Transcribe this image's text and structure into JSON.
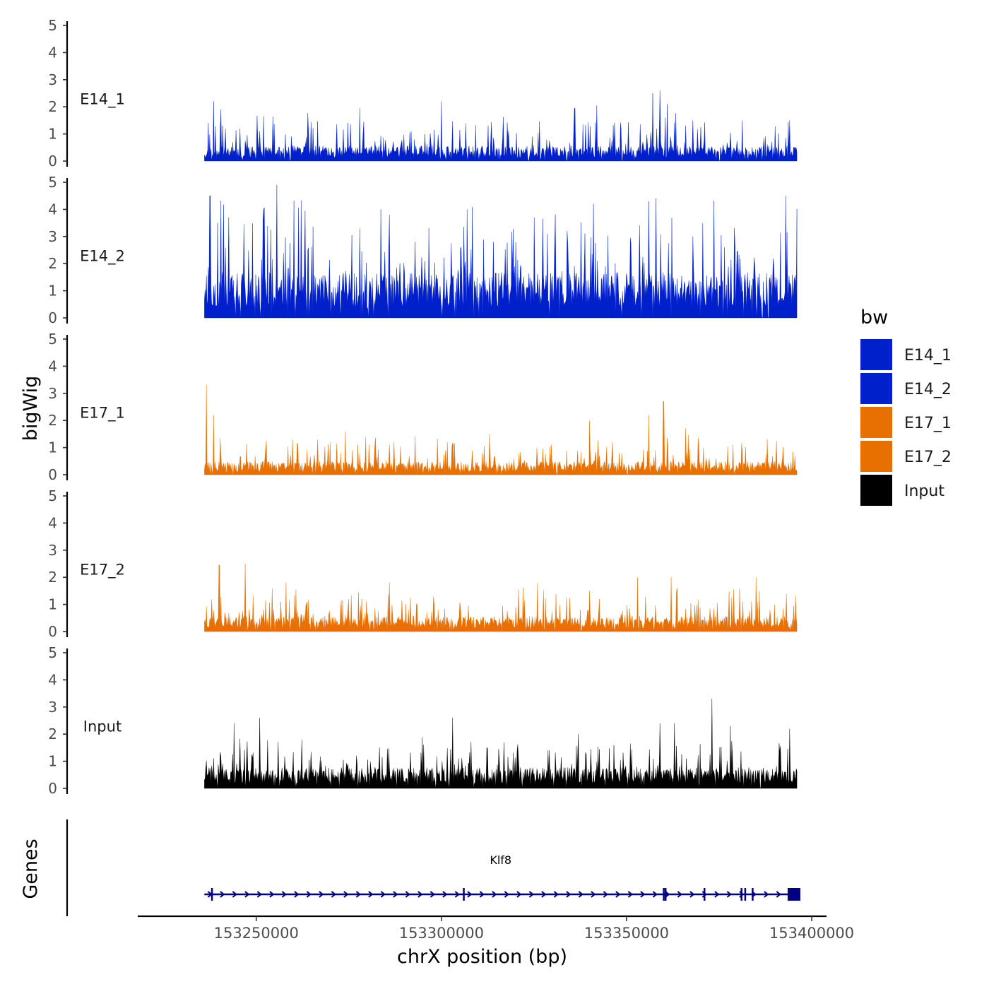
{
  "chart_data": {
    "type": "area",
    "title": "",
    "xlabel": "chrX position (bp)",
    "ylabel": "bigWig",
    "genes_label": "Genes",
    "xlim": [
      153218000,
      153404000
    ],
    "data_range": [
      153236000,
      153396000
    ],
    "ylim": [
      0,
      5
    ],
    "yticks": [
      "0",
      "1",
      "2",
      "3",
      "4",
      "5"
    ],
    "xticks": [
      {
        "value": 153250000,
        "label": "153250000"
      },
      {
        "value": 153300000,
        "label": "153300000"
      },
      {
        "value": 153350000,
        "label": "153350000"
      },
      {
        "value": 153400000,
        "label": "153400000"
      }
    ],
    "legend": {
      "title": "bw",
      "position": "right",
      "entries": [
        {
          "label": "E14_1",
          "color": "#0020CC"
        },
        {
          "label": "E14_2",
          "color": "#0020CC"
        },
        {
          "label": "E17_1",
          "color": "#E87000"
        },
        {
          "label": "E17_2",
          "color": "#E87000"
        },
        {
          "label": "Input",
          "color": "#000000"
        }
      ]
    },
    "series": [
      {
        "name": "E14_1",
        "color": "#0020CC",
        "base": 0.4,
        "spread": 0.9,
        "seed": 11,
        "peaks": [
          [
            153237000,
            1.4
          ],
          [
            153238500,
            2.2
          ],
          [
            153240500,
            1.9
          ],
          [
            153278000,
            1.95
          ],
          [
            153300000,
            2.2
          ],
          [
            153336000,
            1.95
          ],
          [
            153342000,
            2.05
          ],
          [
            153357000,
            2.5
          ],
          [
            153359000,
            2.6
          ],
          [
            153361000,
            2.1
          ],
          [
            153394000,
            1.5
          ]
        ]
      },
      {
        "name": "E14_2",
        "color": "#0020CC",
        "base": 1.2,
        "spread": 2.0,
        "seed": 23,
        "peaks": [
          [
            153237500,
            4.5
          ],
          [
            153239500,
            3.5
          ],
          [
            153255500,
            4.9
          ],
          [
            153252000,
            4.0
          ],
          [
            153286000,
            3.8
          ],
          [
            153325000,
            3.7
          ],
          [
            153341000,
            4.2
          ],
          [
            153356000,
            4.3
          ],
          [
            153358000,
            4.4
          ],
          [
            153393000,
            4.5
          ]
        ]
      },
      {
        "name": "E17_1",
        "color": "#E87000",
        "base": 0.35,
        "spread": 0.7,
        "seed": 37,
        "peaks": [
          [
            153236500,
            3.3
          ],
          [
            153238500,
            2.2
          ],
          [
            153274000,
            1.6
          ],
          [
            153313000,
            1.5
          ],
          [
            153340000,
            2.0
          ],
          [
            153356000,
            2.2
          ],
          [
            153360000,
            2.7
          ],
          [
            153366000,
            1.7
          ],
          [
            153388000,
            1.3
          ]
        ]
      },
      {
        "name": "E17_2",
        "color": "#E87000",
        "base": 0.4,
        "spread": 0.8,
        "seed": 53,
        "peaks": [
          [
            153240000,
            2.45
          ],
          [
            153247000,
            2.5
          ],
          [
            153258000,
            1.8
          ],
          [
            153286000,
            1.8
          ],
          [
            153326000,
            1.8
          ],
          [
            153353000,
            2.0
          ],
          [
            153362000,
            2.0
          ],
          [
            153385000,
            2.0
          ]
        ]
      },
      {
        "name": "Input",
        "color": "#000000",
        "base": 0.55,
        "spread": 0.9,
        "seed": 71,
        "peaks": [
          [
            153244000,
            2.4
          ],
          [
            153251000,
            2.6
          ],
          [
            153303000,
            2.6
          ],
          [
            153337000,
            2.0
          ],
          [
            153359000,
            2.4
          ],
          [
            153363000,
            2.4
          ],
          [
            153373000,
            3.3
          ],
          [
            153378000,
            2.3
          ],
          [
            153394000,
            2.2
          ]
        ]
      }
    ],
    "gene_track": {
      "name": "Klf8",
      "strand": "+",
      "start": 153236000,
      "end": 153396000,
      "color": "#000080",
      "exons": [
        153238000,
        153306000,
        153360000,
        153360500,
        153371000,
        153381000,
        153382000,
        153384000,
        153393500
      ]
    }
  }
}
